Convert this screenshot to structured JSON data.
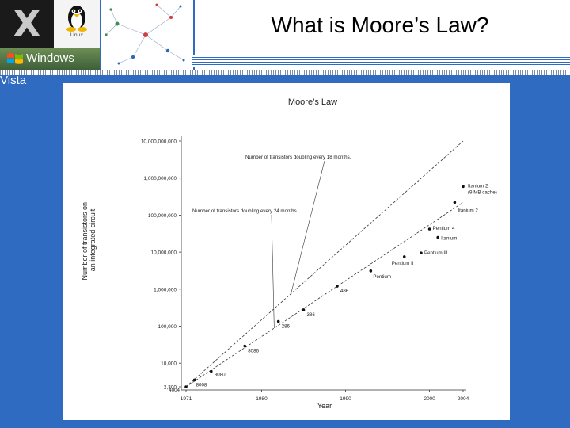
{
  "slide": {
    "title": "What is Moore’s Law?"
  },
  "header": {
    "os_logos": [
      {
        "name": "mac-os-x-logo",
        "glyph": "X"
      },
      {
        "name": "linux-tux-logo",
        "caption": "Linux"
      },
      {
        "name": "windows-vista-logo",
        "label": "Windows Vista"
      }
    ],
    "network-graph": "network graph thumbnail"
  },
  "chart_data": {
    "type": "scatter",
    "title": "Moore’s Law",
    "xlabel": "Year",
    "ylabel": [
      "Number of transistors on",
      "an integrated circuit"
    ],
    "y_scale": "log",
    "xlim": [
      1971,
      2004
    ],
    "ylim": [
      2300,
      10000000000
    ],
    "x_ticks": [
      "1971",
      "1980",
      "1990",
      "2000",
      "2004"
    ],
    "x_tick_values": [
      1971,
      1980,
      1990,
      2000,
      2004
    ],
    "y_ticks": [
      "10,000,000,000",
      "1,000,000,000",
      "100,000,000",
      "10,000,000",
      "1,000,000",
      "100,000",
      "10,000",
      "2,300"
    ],
    "y_tick_values": [
      10000000000,
      1000000000,
      100000000,
      10000000,
      1000000,
      100000,
      10000,
      2300
    ],
    "grid": false,
    "points": [
      {
        "label": "4004",
        "x": 1971,
        "y": 2300
      },
      {
        "label": "8008",
        "x": 1972,
        "y": 3500
      },
      {
        "label": "8080",
        "x": 1974,
        "y": 6000
      },
      {
        "label": "8086",
        "x": 1978,
        "y": 29000
      },
      {
        "label": "286",
        "x": 1982,
        "y": 134000
      },
      {
        "label": "386",
        "x": 1985,
        "y": 275000
      },
      {
        "label": "486",
        "x": 1989,
        "y": 1200000
      },
      {
        "label": "Pentium",
        "x": 1993,
        "y": 3100000
      },
      {
        "label": "Pentium II",
        "x": 1997,
        "y": 7500000
      },
      {
        "label": "Pentium III",
        "x": 1999,
        "y": 9500000
      },
      {
        "label": "Pentium 4",
        "x": 2000,
        "y": 42000000
      },
      {
        "label": "Itanium",
        "x": 2001,
        "y": 25000000
      },
      {
        "label": "Itanium 2",
        "x": 2003,
        "y": 220000000
      },
      {
        "label": "Itanium 2",
        "sublabel": "(9 MB cache)",
        "x": 2004,
        "y": 592000000
      }
    ],
    "trend_lines": [
      {
        "name": "Number of transistors doubling every 18 months.",
        "x": [
          1971,
          2004
        ],
        "y": [
          2300,
          10000000000
        ],
        "style": "dashed"
      },
      {
        "name": "Number of transistors doubling every 24 months.",
        "x": [
          1971,
          2004
        ],
        "y": [
          2300,
          220000000
        ],
        "style": "dashed"
      }
    ],
    "annotations": [
      "Number of transistors doubling every 18 months.",
      "Number of transistors doubling every 24 months."
    ]
  }
}
